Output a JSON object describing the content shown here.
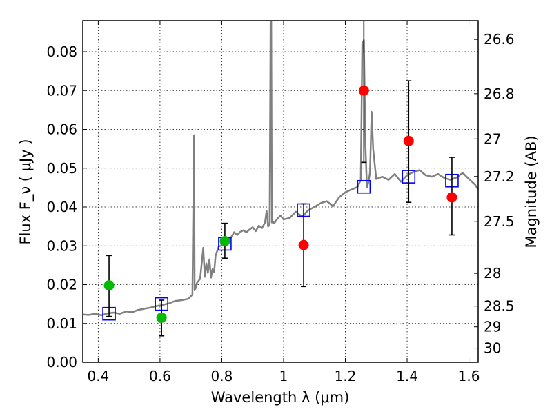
{
  "chart_data": {
    "type": "line",
    "xlabel": "Wavelength  λ (μm)",
    "ylabel": "Flux  F_ν  ( μJy )",
    "y2label": "Magnitude (AB)",
    "xlim": [
      0.35,
      1.63
    ],
    "ylim": [
      0.0,
      0.088
    ],
    "grid": true,
    "x_ticks": [
      "0.4",
      "0.6",
      "0.8",
      "1",
      "1.2",
      "1.4",
      "1.6"
    ],
    "x_tick_values": [
      0.4,
      0.6,
      0.8,
      1.0,
      1.2,
      1.4,
      1.6
    ],
    "y_ticks": [
      "0.00",
      "0.01",
      "0.02",
      "0.03",
      "0.04",
      "0.05",
      "0.06",
      "0.07",
      "0.08"
    ],
    "y_tick_values": [
      0.0,
      0.01,
      0.02,
      0.03,
      0.04,
      0.05,
      0.06,
      0.07,
      0.08
    ],
    "mag_ticks": [
      "26.6",
      "26.8",
      "27",
      "27.2",
      "27.5",
      "28",
      "28.5",
      "29",
      "30"
    ],
    "mag_tick_values": [
      26.6,
      26.8,
      27.0,
      27.2,
      27.5,
      28.0,
      28.5,
      29.0,
      30.0
    ],
    "colors": {
      "spectrum": "#808080",
      "model_box": "#0000ff",
      "detection": "#00bb00",
      "nondetection": "#ff0000",
      "errorbar": "#000000"
    },
    "series": [
      {
        "type": "line",
        "color": "#808080",
        "x": [
          0.35,
          0.37,
          0.39,
          0.41,
          0.43,
          0.45,
          0.47,
          0.49,
          0.51,
          0.53,
          0.55,
          0.57,
          0.59,
          0.61,
          0.63,
          0.65,
          0.67,
          0.69,
          0.7,
          0.705,
          0.71,
          0.712,
          0.715,
          0.72,
          0.73,
          0.74,
          0.745,
          0.75,
          0.755,
          0.76,
          0.765,
          0.77,
          0.775,
          0.78,
          0.79,
          0.8,
          0.81,
          0.82,
          0.83,
          0.84,
          0.85,
          0.86,
          0.87,
          0.88,
          0.89,
          0.9,
          0.91,
          0.92,
          0.93,
          0.94,
          0.945,
          0.95,
          0.955,
          0.958,
          0.96,
          0.962,
          0.965,
          0.97,
          0.98,
          0.99,
          1.0,
          1.02,
          1.04,
          1.06,
          1.08,
          1.1,
          1.12,
          1.14,
          1.16,
          1.18,
          1.2,
          1.22,
          1.24,
          1.25,
          1.255,
          1.26,
          1.265,
          1.27,
          1.275,
          1.28,
          1.285,
          1.29,
          1.3,
          1.32,
          1.34,
          1.36,
          1.38,
          1.4,
          1.42,
          1.44,
          1.46,
          1.48,
          1.5,
          1.52,
          1.54,
          1.56,
          1.58,
          1.6,
          1.62,
          1.63
        ],
        "y": [
          0.0123,
          0.0122,
          0.0125,
          0.0121,
          0.0126,
          0.0128,
          0.0125,
          0.0131,
          0.0129,
          0.0135,
          0.0138,
          0.0141,
          0.0145,
          0.0148,
          0.0152,
          0.0158,
          0.016,
          0.0163,
          0.017,
          0.0175,
          0.0585,
          0.0185,
          0.019,
          0.0205,
          0.0215,
          0.0295,
          0.022,
          0.0255,
          0.023,
          0.0265,
          0.0218,
          0.024,
          0.0232,
          0.0275,
          0.0298,
          0.0302,
          0.0305,
          0.0315,
          0.0322,
          0.0335,
          0.0328,
          0.0336,
          0.034,
          0.0335,
          0.0342,
          0.0348,
          0.0338,
          0.0352,
          0.0345,
          0.036,
          0.039,
          0.035,
          0.0355,
          0.088,
          0.088,
          0.036,
          0.0362,
          0.0358,
          0.037,
          0.0378,
          0.0368,
          0.0372,
          0.0388,
          0.0375,
          0.0392,
          0.04,
          0.041,
          0.0415,
          0.0402,
          0.0425,
          0.0438,
          0.0445,
          0.0452,
          0.047,
          0.082,
          0.083,
          0.056,
          0.045,
          0.0465,
          0.049,
          0.0645,
          0.055,
          0.0472,
          0.0478,
          0.047,
          0.0485,
          0.0465,
          0.0482,
          0.049,
          0.0495,
          0.0482,
          0.0478,
          0.0485,
          0.0475,
          0.047,
          0.0476,
          0.0488,
          0.0472,
          0.0458,
          0.0445
        ]
      },
      {
        "type": "scatter",
        "marker": "open-square",
        "color": "#0000ff",
        "x": [
          0.435,
          0.605,
          0.81,
          1.065,
          1.26,
          1.405,
          1.545
        ],
        "y": [
          0.0125,
          0.015,
          0.0305,
          0.0392,
          0.0452,
          0.0478,
          0.0468
        ]
      },
      {
        "type": "scatter",
        "marker": "filled-circle",
        "color": "#00bb00",
        "x": [
          0.435,
          0.605,
          0.81
        ],
        "y": [
          0.0198,
          0.0115,
          0.0312
        ],
        "yerr_low": [
          0.0118,
          0.0068,
          0.0268
        ],
        "yerr_high": [
          0.0275,
          0.016,
          0.0358
        ]
      },
      {
        "type": "scatter",
        "marker": "filled-circle",
        "color": "#ff0000",
        "x": [
          1.065,
          1.26,
          1.405,
          1.545
        ],
        "y": [
          0.0302,
          0.07,
          0.057,
          0.0425
        ],
        "yerr_low": [
          0.0195,
          0.0515,
          0.0412,
          0.0328
        ],
        "yerr_high": [
          0.0408,
          0.088,
          0.0725,
          0.0528
        ]
      }
    ]
  }
}
